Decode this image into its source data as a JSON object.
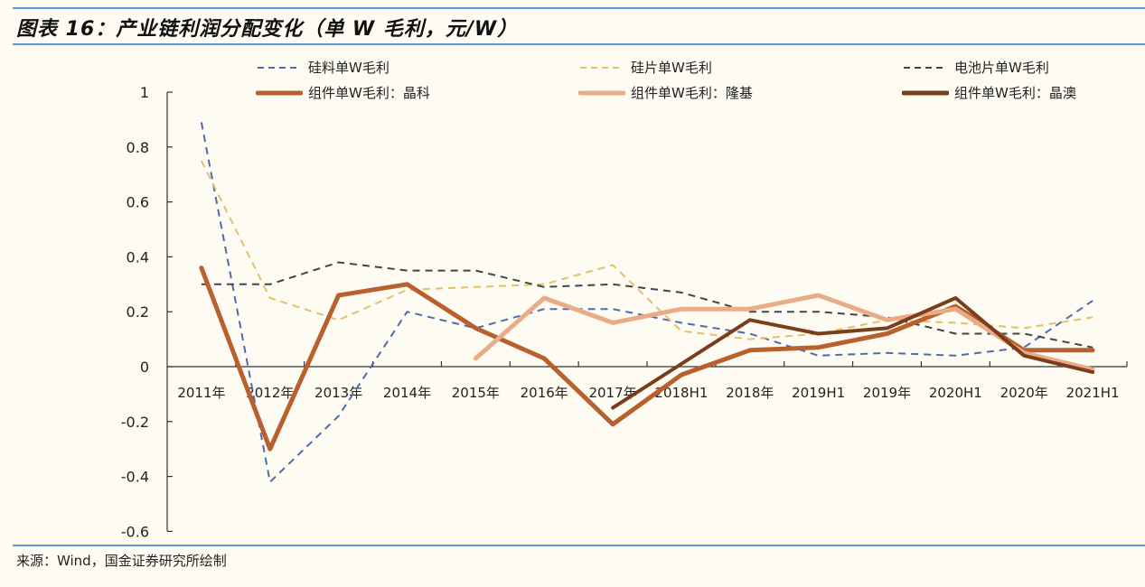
{
  "title": "图表 16：产业链利润分配变化（单 W 毛利，元/W）",
  "source": "来源：Wind，国金证券研究所绘制",
  "colors": {
    "rule": "#5b9bd5",
    "background": "#fefcf2"
  },
  "chart_data": {
    "type": "line",
    "title": "产业链利润分配变化（单 W 毛利，元/W）",
    "xlabel": "",
    "ylabel": "元/W",
    "ylim": [
      -0.6,
      1
    ],
    "yticks": [
      -0.6,
      -0.4,
      -0.2,
      0,
      0.2,
      0.4,
      0.6,
      0.8,
      1
    ],
    "ytick_labels": [
      "-0.6",
      "-0.4",
      "-0.2",
      "0",
      "0.2",
      "0.4",
      "0.6",
      "0.8",
      "1"
    ],
    "grid": false,
    "legend_position": "top",
    "categories": [
      "2011年",
      "2012年",
      "2013年",
      "2014年",
      "2015年",
      "2016年",
      "2017年",
      "2018H1",
      "2018年",
      "2019H1",
      "2019年",
      "2020H1",
      "2020年",
      "2021H1"
    ],
    "series": [
      {
        "name": "硅料单W毛利",
        "style": "dashed",
        "color": "#4e6bb0",
        "width": 2,
        "values": [
          0.89,
          -0.42,
          -0.18,
          0.2,
          0.14,
          0.21,
          0.21,
          0.16,
          0.12,
          0.04,
          0.05,
          0.04,
          0.07,
          0.24
        ]
      },
      {
        "name": "硅片单W毛利",
        "style": "dashed",
        "color": "#e3c06a",
        "width": 2,
        "values": [
          0.75,
          0.25,
          0.17,
          0.28,
          0.29,
          0.3,
          0.37,
          0.13,
          0.1,
          0.12,
          0.17,
          0.16,
          0.14,
          0.18
        ]
      },
      {
        "name": "电池片单W毛利",
        "style": "dashed",
        "color": "#444444",
        "width": 2,
        "values": [
          0.3,
          0.3,
          0.38,
          0.35,
          0.35,
          0.29,
          0.3,
          0.27,
          0.2,
          0.2,
          0.18,
          0.12,
          0.12,
          0.07
        ]
      },
      {
        "name": "组件单W毛利：晶科",
        "style": "solid",
        "color": "#b8602e",
        "width": 5,
        "values": [
          0.36,
          -0.3,
          0.26,
          0.3,
          0.14,
          0.03,
          -0.21,
          -0.03,
          0.06,
          0.07,
          0.12,
          0.22,
          0.06,
          0.06
        ]
      },
      {
        "name": "组件单W毛利：隆基",
        "style": "solid",
        "color": "#e8ad88",
        "width": 5,
        "values": [
          null,
          null,
          null,
          null,
          0.03,
          0.25,
          0.16,
          0.21,
          0.21,
          0.26,
          0.17,
          0.21,
          0.05,
          -0.01
        ]
      },
      {
        "name": "组件单W毛利：晶澳",
        "style": "solid",
        "color": "#7a3e1a",
        "width": 4,
        "values": [
          null,
          null,
          null,
          null,
          null,
          null,
          -0.15,
          0.01,
          0.17,
          0.12,
          0.14,
          0.25,
          0.04,
          -0.02
        ]
      }
    ]
  }
}
